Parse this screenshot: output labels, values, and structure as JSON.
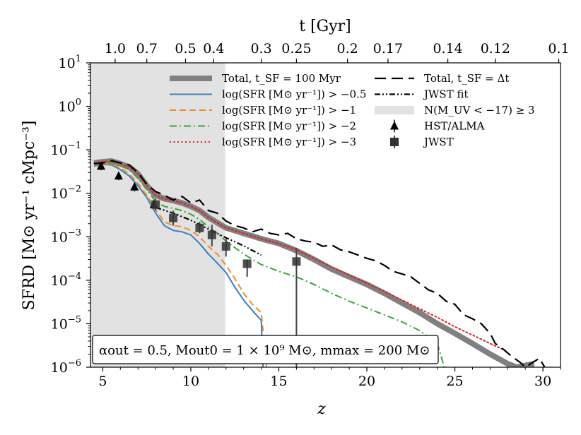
{
  "chart_data": {
    "type": "line",
    "xlabel": "z",
    "ylabel": "SFRD [M⊙ yr⁻¹ cMpc⁻³]",
    "top_xlabel": "t [Gyr]",
    "xlim": [
      4.3,
      31.0
    ],
    "ylim": [
      1e-06,
      10
    ],
    "yscale": "log",
    "xticks": [
      5,
      10,
      15,
      20,
      25,
      30
    ],
    "yticks": [
      {
        "value": 1e-06,
        "base": "10",
        "exp": "−6"
      },
      {
        "value": 1e-05,
        "base": "10",
        "exp": "−5"
      },
      {
        "value": 0.0001,
        "base": "10",
        "exp": "−4"
      },
      {
        "value": 0.001,
        "base": "10",
        "exp": "−3"
      },
      {
        "value": 0.01,
        "base": "10",
        "exp": "−2"
      },
      {
        "value": 0.1,
        "base": "10",
        "exp": "−1"
      },
      {
        "value": 1,
        "base": "10",
        "exp": "0"
      },
      {
        "value": 10,
        "base": "10",
        "exp": "1"
      }
    ],
    "top_ticks": [
      {
        "label": "1.0",
        "z": 5.7
      },
      {
        "label": "0.7",
        "z": 7.5
      },
      {
        "label": "0.5",
        "z": 9.7
      },
      {
        "label": "0.4",
        "z": 11.3
      },
      {
        "label": "0.3",
        "z": 14.0
      },
      {
        "label": "0.25",
        "z": 16.0
      },
      {
        "label": "0.2",
        "z": 18.9
      },
      {
        "label": "0.17",
        "z": 21.2
      },
      {
        "label": "0.14",
        "z": 24.6
      },
      {
        "label": "0.12",
        "z": 27.3
      },
      {
        "label": "0.1",
        "z": 30.9
      }
    ],
    "shaded_region": {
      "label": "N(M_UV < −17) ≥ 3",
      "x": [
        4.3,
        11.95
      ],
      "color": "#e2e2e2"
    },
    "series": [
      {
        "name": "Total, t_SF = 100 Myr",
        "color": "#808080",
        "style": "solid",
        "legend_col": 1,
        "points": [
          [
            4.5,
            0.05
          ],
          [
            5,
            0.053
          ],
          [
            5.5,
            0.055
          ],
          [
            6,
            0.048
          ],
          [
            6.5,
            0.04
          ],
          [
            7,
            0.028
          ],
          [
            7.5,
            0.015
          ],
          [
            8,
            0.009
          ],
          [
            8.5,
            0.0075
          ],
          [
            9,
            0.0068
          ],
          [
            9.5,
            0.006
          ],
          [
            10,
            0.005
          ],
          [
            10.5,
            0.004
          ],
          [
            11,
            0.0028
          ],
          [
            11.5,
            0.0021
          ],
          [
            12,
            0.0016
          ],
          [
            13,
            0.0012
          ],
          [
            14,
            0.0009
          ],
          [
            15,
            0.0007
          ],
          [
            16,
            0.00048
          ],
          [
            17,
            0.0003
          ],
          [
            18,
            0.00018
          ],
          [
            19,
            0.00012
          ],
          [
            20,
            8e-05
          ],
          [
            21,
            5e-05
          ],
          [
            22,
            3e-05
          ],
          [
            23,
            1.8e-05
          ],
          [
            24,
            1e-05
          ],
          [
            25,
            6e-06
          ],
          [
            26,
            3.5e-06
          ],
          [
            27,
            2e-06
          ],
          [
            28,
            1.2e-06
          ],
          [
            28.5,
            1e-06
          ],
          [
            29.5,
            1.2e-06
          ]
        ]
      },
      {
        "name": "log(SFR [M⊙ yr⁻¹]) > −0.5",
        "color": "#3a7ebf",
        "style": "solid",
        "legend_col": 1,
        "points": [
          [
            4.5,
            0.042
          ],
          [
            5,
            0.046
          ],
          [
            5.5,
            0.045
          ],
          [
            6,
            0.035
          ],
          [
            6.5,
            0.025
          ],
          [
            7,
            0.015
          ],
          [
            7.5,
            0.008
          ],
          [
            8,
            0.0035
          ],
          [
            8.5,
            0.0018
          ],
          [
            9,
            0.0014
          ],
          [
            9.5,
            0.0013
          ],
          [
            10,
            0.0011
          ],
          [
            10.5,
            0.0007
          ],
          [
            11,
            0.0004
          ],
          [
            11.5,
            0.00025
          ],
          [
            12,
            0.00015
          ],
          [
            12.5,
            7e-05
          ],
          [
            13,
            3.5e-05
          ],
          [
            13.5,
            2e-05
          ],
          [
            14,
            1.2e-05
          ],
          [
            14.1,
            1e-06
          ]
        ]
      },
      {
        "name": "log(SFR [M⊙ yr⁻¹]) > −1",
        "color": "#f08a2a",
        "style": "dashed",
        "legend_col": 1,
        "points": [
          [
            4.5,
            0.044
          ],
          [
            5,
            0.048
          ],
          [
            5.5,
            0.047
          ],
          [
            6,
            0.038
          ],
          [
            6.5,
            0.028
          ],
          [
            7,
            0.017
          ],
          [
            7.5,
            0.009
          ],
          [
            8,
            0.0042
          ],
          [
            8.5,
            0.0022
          ],
          [
            9,
            0.0018
          ],
          [
            9.5,
            0.0017
          ],
          [
            10,
            0.0014
          ],
          [
            10.5,
            0.001
          ],
          [
            11,
            0.0006
          ],
          [
            11.5,
            0.0004
          ],
          [
            12,
            0.00022
          ],
          [
            12.5,
            0.00011
          ],
          [
            13,
            5e-05
          ],
          [
            13.5,
            2.8e-05
          ],
          [
            14,
            1.8e-05
          ],
          [
            14.3,
            1e-06
          ]
        ]
      },
      {
        "name": "log(SFR [M⊙ yr⁻¹]) > −2",
        "color": "#3aa53a",
        "style": "dashdot",
        "legend_col": 1,
        "points": [
          [
            4.5,
            0.045
          ],
          [
            5,
            0.05
          ],
          [
            5.5,
            0.05
          ],
          [
            6,
            0.043
          ],
          [
            6.5,
            0.035
          ],
          [
            7,
            0.022
          ],
          [
            7.5,
            0.012
          ],
          [
            8,
            0.0065
          ],
          [
            8.5,
            0.005
          ],
          [
            9,
            0.0045
          ],
          [
            9.5,
            0.004
          ],
          [
            10,
            0.0033
          ],
          [
            10.5,
            0.0025
          ],
          [
            11,
            0.0017
          ],
          [
            11.5,
            0.0012
          ],
          [
            12,
            0.0008
          ],
          [
            13,
            0.0004
          ],
          [
            14,
            0.00023
          ],
          [
            15,
            0.00016
          ],
          [
            16,
            0.00012
          ],
          [
            17,
            8e-05
          ],
          [
            18,
            5e-05
          ],
          [
            19,
            3.3e-05
          ],
          [
            20,
            2.3e-05
          ],
          [
            21,
            1.6e-05
          ],
          [
            22,
            1.1e-05
          ],
          [
            23,
            7e-06
          ],
          [
            24,
            3.5e-06
          ],
          [
            24.4,
            1e-06
          ]
        ]
      },
      {
        "name": "log(SFR [M⊙ yr⁻¹]) > −3",
        "color": "#e02020",
        "style": "dotted",
        "legend_col": 1,
        "points": [
          [
            4.5,
            0.05
          ],
          [
            5,
            0.053
          ],
          [
            5.5,
            0.055
          ],
          [
            6,
            0.048
          ],
          [
            6.5,
            0.04
          ],
          [
            7,
            0.028
          ],
          [
            7.5,
            0.015
          ],
          [
            8,
            0.009
          ],
          [
            8.5,
            0.0075
          ],
          [
            9,
            0.0068
          ],
          [
            9.5,
            0.006
          ],
          [
            10,
            0.005
          ],
          [
            10.5,
            0.004
          ],
          [
            11,
            0.0028
          ],
          [
            11.5,
            0.0021
          ],
          [
            12,
            0.0016
          ],
          [
            13,
            0.0012
          ],
          [
            14,
            0.0009
          ],
          [
            15,
            0.0007
          ],
          [
            16,
            0.0005
          ],
          [
            17,
            0.00032
          ],
          [
            18,
            0.0002
          ],
          [
            19,
            0.00013
          ],
          [
            20,
            8.5e-05
          ],
          [
            21,
            5.5e-05
          ],
          [
            22,
            3.5e-05
          ],
          [
            23,
            2.2e-05
          ],
          [
            24,
            1.4e-05
          ],
          [
            25,
            8.5e-06
          ],
          [
            26,
            5.5e-06
          ],
          [
            27,
            3.5e-06
          ],
          [
            27.8,
            2.5e-06
          ]
        ]
      },
      {
        "name": "Total, t_SF = Δt",
        "color": "#000000",
        "style": "longdash",
        "legend_col": 2,
        "points": [
          [
            4.5,
            0.048
          ],
          [
            5,
            0.05
          ],
          [
            5.5,
            0.056
          ],
          [
            6,
            0.05
          ],
          [
            6.5,
            0.045
          ],
          [
            7,
            0.03
          ],
          [
            7.5,
            0.016
          ],
          [
            8,
            0.011
          ],
          [
            8.5,
            0.009
          ],
          [
            9,
            0.007
          ],
          [
            9.5,
            0.0085
          ],
          [
            10,
            0.006
          ],
          [
            10.5,
            0.007
          ],
          [
            11,
            0.004
          ],
          [
            11.5,
            0.0035
          ],
          [
            12,
            0.0023
          ],
          [
            12.5,
            0.0018
          ],
          [
            13,
            0.0016
          ],
          [
            13.5,
            0.0013
          ],
          [
            14,
            0.0015
          ],
          [
            14.5,
            0.0012
          ],
          [
            15,
            0.0011
          ],
          [
            15.5,
            0.0012
          ],
          [
            16,
            0.0009
          ],
          [
            16.5,
            0.0008
          ],
          [
            17,
            0.00075
          ],
          [
            17.5,
            0.0006
          ],
          [
            18,
            0.00065
          ],
          [
            18.5,
            0.0005
          ],
          [
            19,
            0.00045
          ],
          [
            19.5,
            0.00038
          ],
          [
            20,
            0.00032
          ],
          [
            20.5,
            0.00028
          ],
          [
            21,
            0.00022
          ],
          [
            21.5,
            0.00016
          ],
          [
            22,
            0.00014
          ],
          [
            22.5,
            0.00012
          ],
          [
            23,
            8.5e-05
          ],
          [
            23.5,
            6e-05
          ],
          [
            24,
            5e-05
          ],
          [
            24.5,
            3.3e-05
          ],
          [
            25,
            2.8e-05
          ],
          [
            25.5,
            1.6e-05
          ],
          [
            26,
            1.3e-05
          ],
          [
            26.5,
            1e-05
          ],
          [
            27,
            6e-06
          ],
          [
            27.3,
            3.5e-06
          ],
          [
            27.8,
            2.5e-06
          ],
          [
            28.2,
            1.8e-06
          ],
          [
            28.7,
            1.3e-06
          ],
          [
            29,
            1e-06
          ],
          [
            29.3,
            1.2e-06
          ],
          [
            29.8,
            1.6e-06
          ],
          [
            30.1,
            1e-06
          ]
        ]
      },
      {
        "name": "JWST fit",
        "color": "#000000",
        "style": "dashdotdot",
        "legend_col": 2,
        "points": [
          [
            8,
            0.0047
          ],
          [
            9,
            0.0035
          ],
          [
            10,
            0.0024
          ],
          [
            11,
            0.0015
          ],
          [
            12,
            0.00095
          ],
          [
            13,
            0.00062
          ],
          [
            14,
            0.00038
          ]
        ]
      }
    ],
    "markers": [
      {
        "name": "HST/ALMA",
        "marker": "triangle",
        "color": "#000000",
        "points": [
          {
            "x": 4.9,
            "y": 0.042,
            "ylo": 0.034,
            "yhi": 0.05
          },
          {
            "x": 5.9,
            "y": 0.025,
            "ylo": 0.02,
            "yhi": 0.03
          },
          {
            "x": 6.8,
            "y": 0.014,
            "ylo": 0.011,
            "yhi": 0.017
          },
          {
            "x": 7.9,
            "y": 0.0055,
            "ylo": 0.0044,
            "yhi": 0.0068
          }
        ]
      },
      {
        "name": "JWST",
        "marker": "square",
        "color": "#333333",
        "points": [
          {
            "x": 8.0,
            "y": 0.0055,
            "ylo": 0.004,
            "yhi": 0.0075
          },
          {
            "x": 9.0,
            "y": 0.0027,
            "ylo": 0.0018,
            "yhi": 0.004
          },
          {
            "x": 10.5,
            "y": 0.0016,
            "ylo": 0.0012,
            "yhi": 0.0022
          },
          {
            "x": 11.2,
            "y": 0.0011,
            "ylo": 0.0006,
            "yhi": 0.0019
          },
          {
            "x": 12.0,
            "y": 0.0006,
            "ylo": 0.00035,
            "yhi": 0.0009
          },
          {
            "x": 13.2,
            "y": 0.00024,
            "ylo": 0.00012,
            "yhi": 0.0003
          },
          {
            "x": 16.0,
            "y": 0.00027,
            "ylo": 1e-06,
            "yhi": 0.00055
          }
        ]
      }
    ],
    "annotation": "αout = 0.5, Mout0 = 1 × 10⁹ M⊙, mmax = 200 M⊙",
    "legend_placement": "top"
  }
}
